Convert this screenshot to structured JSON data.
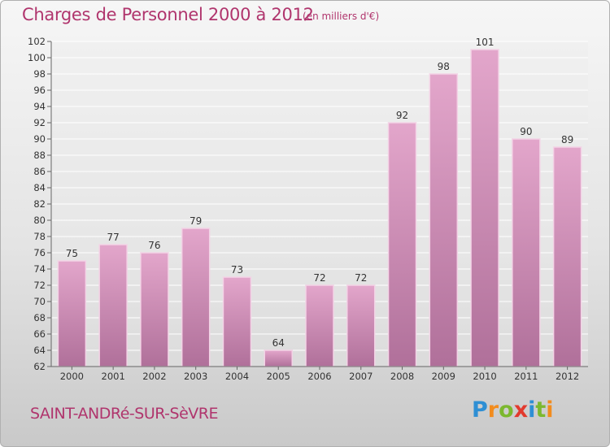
{
  "title": "Charges de Personnel 2000 à 2012",
  "subtitle": "(en milliers d'€)",
  "commune": "SAINT-ANDRé-SUR-SèVRE",
  "logo": {
    "letters": [
      "P",
      "r",
      "o",
      "x",
      "i",
      "t",
      "i"
    ],
    "colors": [
      "#2e8fd4",
      "#f28c1e",
      "#7cb82f",
      "#e23a2e",
      "#2e8fd4",
      "#7cb82f",
      "#f28c1e"
    ]
  },
  "colors": {
    "bar_top": "#e3a6cb",
    "bar_bottom": "#b0709a",
    "bar_edge": "#f3d3e6",
    "text": "#b0356d"
  },
  "chart_data": {
    "type": "bar",
    "categories": [
      "2000",
      "2001",
      "2002",
      "2003",
      "2004",
      "2005",
      "2006",
      "2007",
      "2008",
      "2009",
      "2010",
      "2011",
      "2012"
    ],
    "values": [
      75,
      77,
      76,
      79,
      73,
      64,
      72,
      72,
      92,
      98,
      101,
      90,
      89
    ],
    "ylim": [
      62,
      102
    ],
    "yticks": [
      62,
      64,
      66,
      68,
      70,
      72,
      74,
      76,
      78,
      80,
      82,
      84,
      86,
      88,
      90,
      92,
      94,
      96,
      98,
      100,
      102
    ],
    "grid": true
  }
}
